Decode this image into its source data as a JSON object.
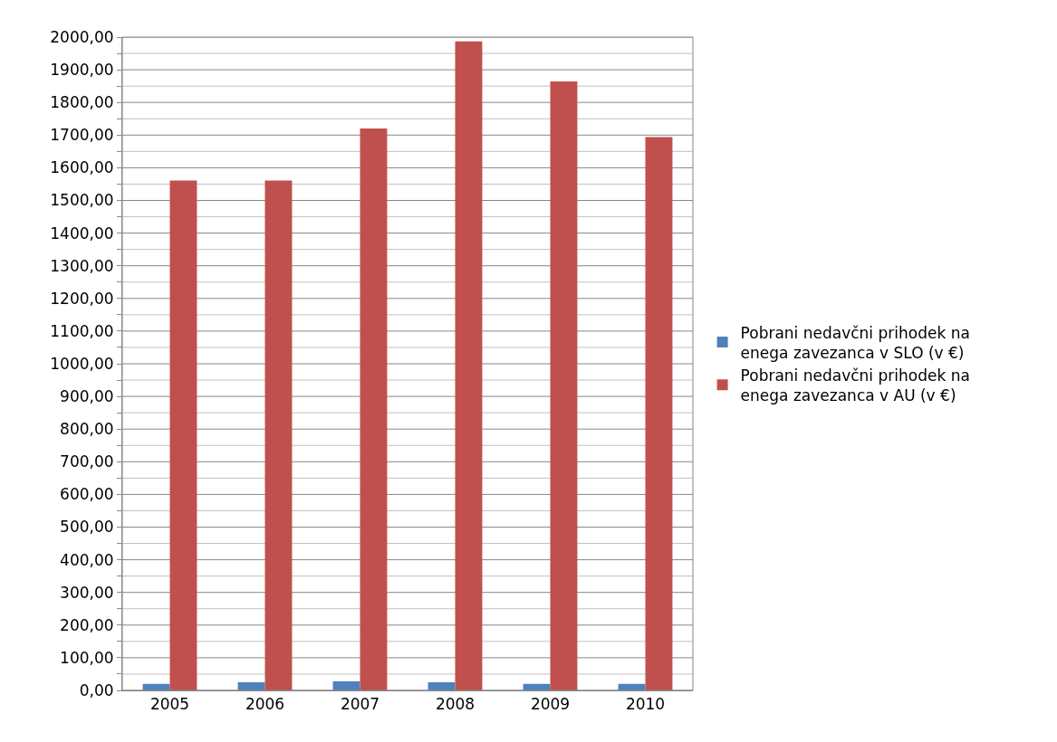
{
  "chart_data": {
    "type": "bar",
    "categories": [
      "2005",
      "2006",
      "2007",
      "2008",
      "2009",
      "2010"
    ],
    "series": [
      {
        "name": "Pobrani nedavčni prihodek na enega zavezanca v SLO (v €)",
        "color": "#4f81bd",
        "values": [
          20,
          25,
          28,
          25,
          20,
          20
        ]
      },
      {
        "name": "Pobrani nedavčni prihodek na enega zavezanca v AU (v €)",
        "color": "#c0504d",
        "values": [
          1561,
          1561,
          1720,
          1987,
          1864,
          1694
        ]
      }
    ],
    "ylim": [
      0,
      2000
    ],
    "yticks": [
      {
        "value": 0,
        "label": "0,00"
      },
      {
        "value": 50,
        "label": null
      },
      {
        "value": 100,
        "label": "100,00"
      },
      {
        "value": 150,
        "label": null
      },
      {
        "value": 200,
        "label": "200,00"
      },
      {
        "value": 250,
        "label": null
      },
      {
        "value": 300,
        "label": "300,00"
      },
      {
        "value": 350,
        "label": null
      },
      {
        "value": 400,
        "label": "400,00"
      },
      {
        "value": 450,
        "label": null
      },
      {
        "value": 500,
        "label": "500,00"
      },
      {
        "value": 550,
        "label": null
      },
      {
        "value": 600,
        "label": "600,00"
      },
      {
        "value": 650,
        "label": null
      },
      {
        "value": 700,
        "label": "700,00"
      },
      {
        "value": 750,
        "label": null
      },
      {
        "value": 800,
        "label": "800,00"
      },
      {
        "value": 850,
        "label": null
      },
      {
        "value": 900,
        "label": "900,00"
      },
      {
        "value": 950,
        "label": null
      },
      {
        "value": 1000,
        "label": "1000,00"
      },
      {
        "value": 1050,
        "label": null
      },
      {
        "value": 1100,
        "label": "1100,00"
      },
      {
        "value": 1150,
        "label": null
      },
      {
        "value": 1200,
        "label": "1200,00"
      },
      {
        "value": 1250,
        "label": null
      },
      {
        "value": 1300,
        "label": "1300,00"
      },
      {
        "value": 1350,
        "label": null
      },
      {
        "value": 1400,
        "label": "1400,00"
      },
      {
        "value": 1450,
        "label": null
      },
      {
        "value": 1500,
        "label": "1500,00"
      },
      {
        "value": 1550,
        "label": null
      },
      {
        "value": 1600,
        "label": "1600,00"
      },
      {
        "value": 1650,
        "label": null
      },
      {
        "value": 1700,
        "label": "1700,00"
      },
      {
        "value": 1750,
        "label": null
      },
      {
        "value": 1800,
        "label": "1800,00"
      },
      {
        "value": 1850,
        "label": null
      },
      {
        "value": 1900,
        "label": "1900,00"
      },
      {
        "value": 1950,
        "label": null
      },
      {
        "value": 2000,
        "label": "2000,00"
      }
    ],
    "grid": true,
    "legend": "right"
  }
}
